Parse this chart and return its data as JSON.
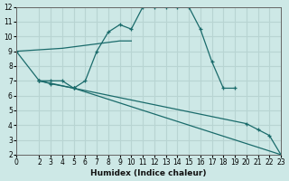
{
  "xlabel": "Humidex (Indice chaleur)",
  "xlim": [
    0,
    23
  ],
  "ylim": [
    2,
    12
  ],
  "yticks": [
    2,
    3,
    4,
    5,
    6,
    7,
    8,
    9,
    10,
    11,
    12
  ],
  "xticks": [
    0,
    2,
    3,
    4,
    5,
    6,
    7,
    8,
    9,
    10,
    11,
    12,
    13,
    14,
    15,
    16,
    17,
    18,
    19,
    20,
    21,
    22,
    23
  ],
  "bg_color": "#cde8e6",
  "grid_color": "#b8d4d2",
  "line_color": "#1a6b6b",
  "line1_no_marker": {
    "x": [
      0,
      2,
      3,
      4,
      5,
      6,
      7,
      8,
      9,
      10
    ],
    "y": [
      9.0,
      9.1,
      9.15,
      9.2,
      9.3,
      9.4,
      9.5,
      9.6,
      9.7,
      9.7
    ]
  },
  "line2_main_curve": {
    "x": [
      0,
      2,
      3,
      4,
      5,
      6,
      7,
      8,
      9,
      10,
      11,
      12,
      13,
      14,
      15,
      16,
      17,
      18,
      19
    ],
    "y": [
      9.0,
      7.0,
      7.0,
      7.0,
      6.5,
      7.0,
      9.0,
      10.3,
      10.8,
      10.5,
      12.0,
      12.0,
      12.0,
      12.0,
      12.0,
      10.5,
      8.3,
      6.5,
      6.5
    ]
  },
  "line3_diag1": {
    "x": [
      2,
      3,
      5,
      23
    ],
    "y": [
      7.0,
      6.8,
      6.5,
      2.0
    ]
  },
  "line4_diag2": {
    "x": [
      2,
      5,
      20,
      21,
      22,
      23
    ],
    "y": [
      7.0,
      6.5,
      4.1,
      3.7,
      3.3,
      2.0
    ]
  }
}
